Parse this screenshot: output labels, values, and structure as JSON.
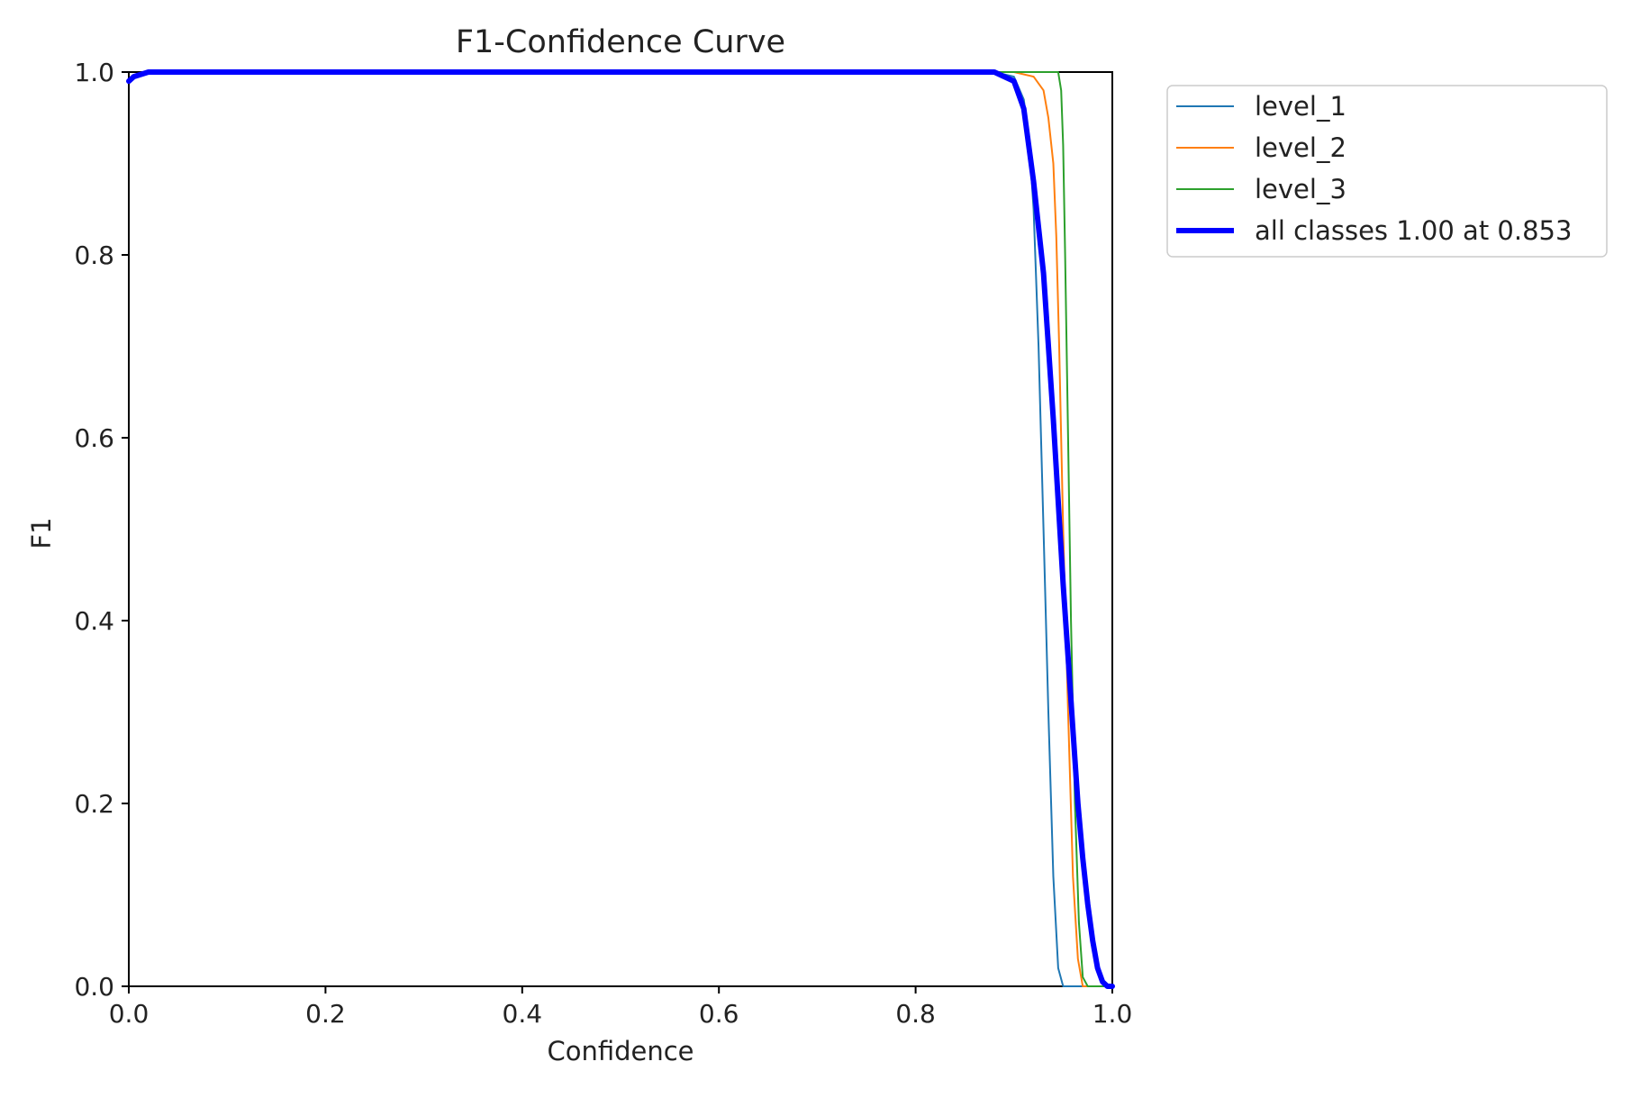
{
  "chart_data": {
    "type": "line",
    "title": "F1-Confidence Curve",
    "xlabel": "Confidence",
    "ylabel": "F1",
    "xlim": [
      0,
      1
    ],
    "ylim": [
      0,
      1
    ],
    "xticks": [
      "0.0",
      "0.2",
      "0.4",
      "0.6",
      "0.8",
      "1.0"
    ],
    "yticks": [
      "0.0",
      "0.2",
      "0.4",
      "0.6",
      "0.8",
      "1.0"
    ],
    "grid": false,
    "legend_position": "outside-top-right",
    "series": [
      {
        "name": "level_1",
        "color": "#1f77b4",
        "x": [
          0.0,
          0.005,
          0.02,
          0.88,
          0.9,
          0.91,
          0.915,
          0.92,
          0.925,
          0.93,
          0.935,
          0.94,
          0.945,
          0.95,
          1.0
        ],
        "y": [
          0.99,
          0.995,
          1.0,
          1.0,
          0.995,
          0.97,
          0.93,
          0.85,
          0.7,
          0.5,
          0.3,
          0.12,
          0.02,
          0.0,
          0.0
        ]
      },
      {
        "name": "level_2",
        "color": "#ff7f0e",
        "x": [
          0.0,
          0.005,
          0.02,
          0.9,
          0.92,
          0.93,
          0.935,
          0.94,
          0.943,
          0.946,
          0.95,
          0.955,
          0.96,
          0.965,
          0.97,
          1.0
        ],
        "y": [
          0.99,
          0.995,
          1.0,
          1.0,
          0.995,
          0.98,
          0.95,
          0.9,
          0.82,
          0.7,
          0.5,
          0.3,
          0.12,
          0.03,
          0.0,
          0.0
        ]
      },
      {
        "name": "level_3",
        "color": "#2ca02c",
        "x": [
          0.0,
          0.005,
          0.02,
          0.945,
          0.948,
          0.95,
          0.952,
          0.955,
          0.958,
          0.962,
          0.966,
          0.97,
          0.975,
          1.0
        ],
        "y": [
          0.99,
          0.995,
          1.0,
          1.0,
          0.98,
          0.92,
          0.8,
          0.6,
          0.4,
          0.2,
          0.07,
          0.01,
          0.0,
          0.0
        ]
      },
      {
        "name": "all classes 1.00 at 0.853",
        "color": "#0000ff",
        "x": [
          0.0,
          0.005,
          0.02,
          0.88,
          0.9,
          0.91,
          0.92,
          0.93,
          0.94,
          0.95,
          0.955,
          0.96,
          0.965,
          0.97,
          0.975,
          0.98,
          0.985,
          0.99,
          0.995,
          1.0
        ],
        "y": [
          0.99,
          0.995,
          1.0,
          1.0,
          0.99,
          0.96,
          0.88,
          0.78,
          0.62,
          0.44,
          0.36,
          0.28,
          0.2,
          0.14,
          0.09,
          0.05,
          0.02,
          0.005,
          0.0,
          0.0
        ]
      }
    ]
  }
}
